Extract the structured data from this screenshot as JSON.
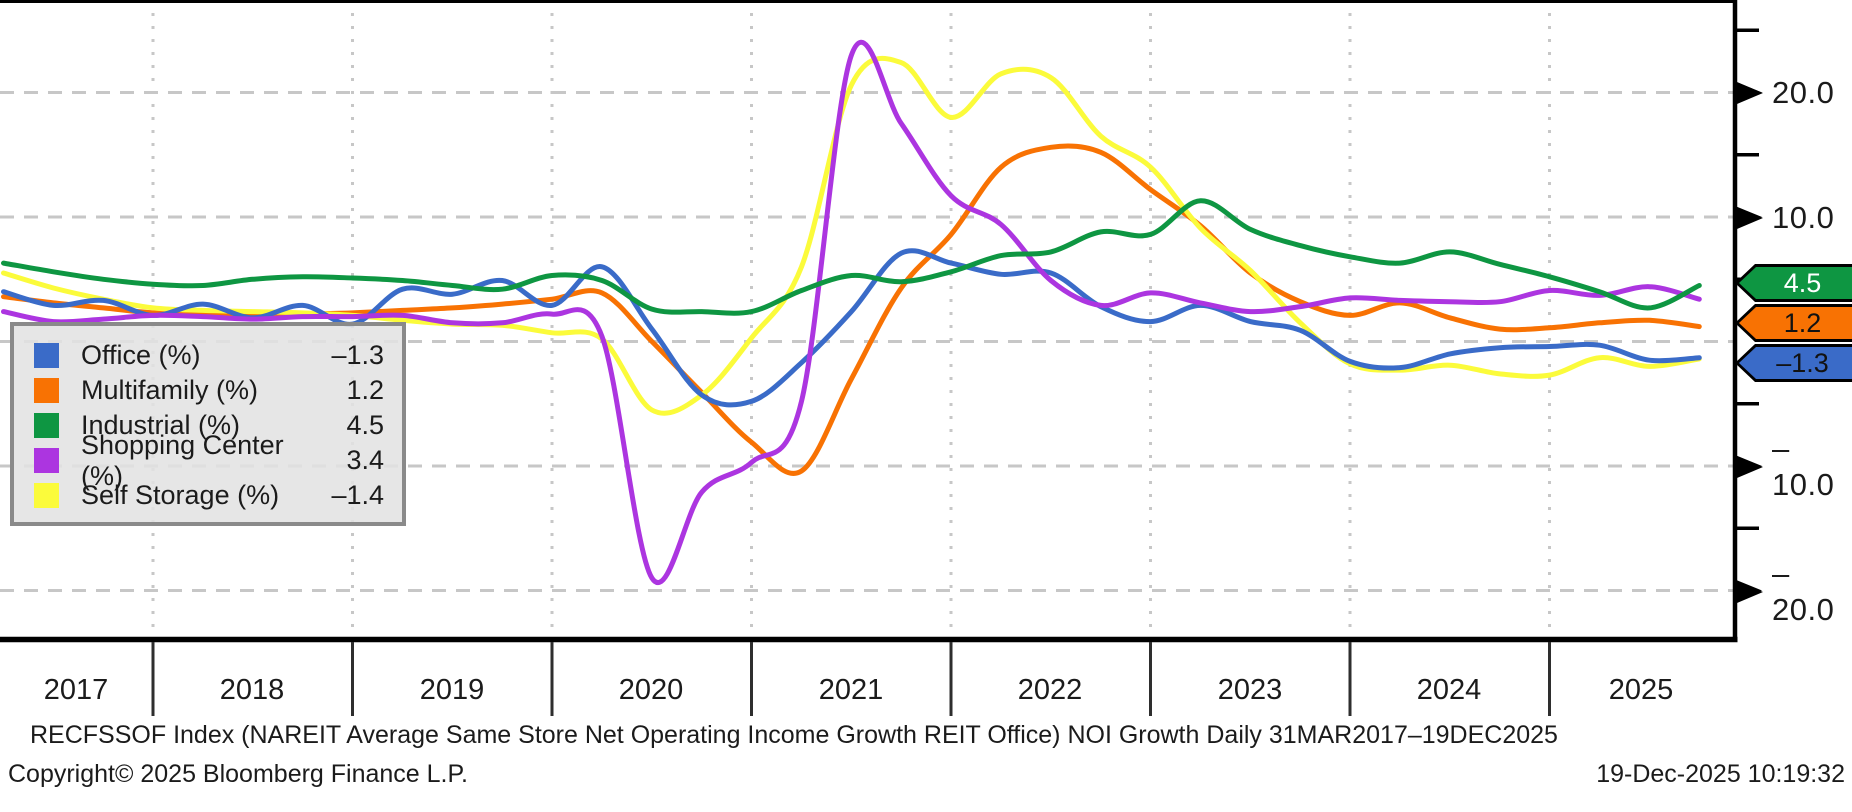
{
  "chart_data": {
    "type": "line",
    "title": "",
    "x_axis": {
      "tick_labels": [
        "2017",
        "2018",
        "2019",
        "2020",
        "2021",
        "2022",
        "2023",
        "2024",
        "2025"
      ],
      "gridline_years": [
        2018,
        2019,
        2020,
        2021,
        2022,
        2023,
        2024,
        2025
      ],
      "range": [
        2017.25,
        2025.92
      ]
    },
    "y_axis": {
      "tick_labels": [
        "20.0",
        "10.0",
        "–10.0",
        "–20.0"
      ],
      "labeled_values": [
        20,
        10,
        -10,
        -20
      ],
      "minor_tick_values": [
        25,
        15,
        5,
        -5,
        -15
      ],
      "gridline_values": [
        20,
        10,
        0,
        -10,
        -20
      ],
      "range": [
        -23.7,
        27.4
      ],
      "grid": "dashed",
      "side": "right"
    },
    "x_start": 2017.25,
    "x_step": 0.25,
    "x_period_start": "2017 Q1",
    "x_period_end": "2025 Q3",
    "series": [
      {
        "name": "Office (%)",
        "color": "#3A6BC8",
        "last_value": "–1.3",
        "values": [
          4.0,
          2.9,
          3.3,
          2.1,
          3.0,
          1.9,
          2.9,
          1.4,
          4.2,
          3.8,
          4.9,
          2.9,
          6.0,
          1.0,
          -4.3,
          -4.8,
          -1.7,
          2.4,
          7.1,
          6.3,
          5.4,
          5.5,
          2.8,
          1.6,
          2.9,
          1.6,
          0.9,
          -1.6,
          -2.1,
          -1.0,
          -0.5,
          -0.4,
          -0.3,
          -1.5,
          -1.3
        ]
      },
      {
        "name": "Multifamily (%)",
        "color": "#F87203",
        "last_value": "1.2",
        "values": [
          3.6,
          3.1,
          2.7,
          2.3,
          2.2,
          2.1,
          2.2,
          2.3,
          2.5,
          2.7,
          3.0,
          3.4,
          3.9,
          0.0,
          -4.1,
          -8.1,
          -10.4,
          -3.0,
          4.3,
          8.6,
          14.0,
          15.6,
          15.2,
          12.2,
          9.3,
          5.5,
          3.2,
          2.1,
          3.1,
          1.9,
          1.0,
          1.1,
          1.5,
          1.7,
          1.2
        ]
      },
      {
        "name": "Industrial (%)",
        "color": "#0E9642",
        "last_value": "4.5",
        "values": [
          6.3,
          5.6,
          5.0,
          4.6,
          4.5,
          5.0,
          5.2,
          5.1,
          4.9,
          4.5,
          4.2,
          5.3,
          4.9,
          2.6,
          2.4,
          2.4,
          4.1,
          5.3,
          4.8,
          5.6,
          6.9,
          7.2,
          8.8,
          8.6,
          11.3,
          9.0,
          7.7,
          6.8,
          6.3,
          7.2,
          6.2,
          5.2,
          4.0,
          2.7,
          4.5
        ]
      },
      {
        "name": "Shopping Center (%)",
        "color": "#AC35E0",
        "last_value": "3.4",
        "values": [
          2.4,
          1.6,
          1.8,
          2.1,
          2.0,
          1.8,
          2.0,
          2.0,
          2.1,
          1.5,
          1.5,
          2.2,
          0.4,
          -19.0,
          -12.1,
          -9.7,
          -4.8,
          23.0,
          17.5,
          11.7,
          9.4,
          4.9,
          2.9,
          3.9,
          3.1,
          2.4,
          2.8,
          3.5,
          3.3,
          3.2,
          3.2,
          4.1,
          3.7,
          4.4,
          3.4
        ]
      },
      {
        "name": "Self Storage (%)",
        "color": "#FBFB3B",
        "last_value": "–1.4",
        "values": [
          5.5,
          4.3,
          3.4,
          2.7,
          2.5,
          2.4,
          2.3,
          2.1,
          1.7,
          1.4,
          1.3,
          0.7,
          0.2,
          -5.5,
          -4.3,
          0.3,
          6.0,
          20.6,
          22.4,
          18.0,
          21.5,
          21.2,
          16.5,
          14.0,
          9.1,
          5.7,
          1.5,
          -1.8,
          -2.3,
          -1.9,
          -2.6,
          -2.7,
          -1.3,
          -2.0,
          -1.4
        ]
      }
    ],
    "draw_order": [
      1,
      4,
      0,
      3,
      2
    ],
    "value_tags": [
      {
        "label": "4.5",
        "series": "Industrial (%)",
        "color": "#0E9642",
        "text_color": "#ffffff"
      },
      {
        "label": "1.2",
        "series": "Multifamily (%)",
        "color": "#F87203",
        "text_color": "#121212"
      },
      {
        "label": "–1.3",
        "series": "Office (%)",
        "color": "#3A6BC8",
        "text_color": "#121212"
      }
    ],
    "legend_position": "bottom-left",
    "colors": {
      "grid": "#c7c7c7",
      "axis": "#000000",
      "tick_separator": "#2e2e2e"
    }
  },
  "legend": {
    "items": [
      {
        "label": "Office (%)",
        "value": "–1.3"
      },
      {
        "label": "Multifamily (%)",
        "value": "1.2"
      },
      {
        "label": "Industrial (%)",
        "value": "4.5"
      },
      {
        "label": "Shopping Center (%)",
        "value": "3.4"
      },
      {
        "label": "Self Storage (%)",
        "value": "–1.4"
      }
    ]
  },
  "footer": {
    "description": "RECFSSOF Index (NAREIT Average Same Store Net Operating Income Growth REIT Office) NOI Growth Daily 31MAR2017–19DEC2025",
    "copyright": "Copyright© 2025 Bloomberg Finance L.P.",
    "timestamp": "19-Dec-2025 10:19:32"
  }
}
